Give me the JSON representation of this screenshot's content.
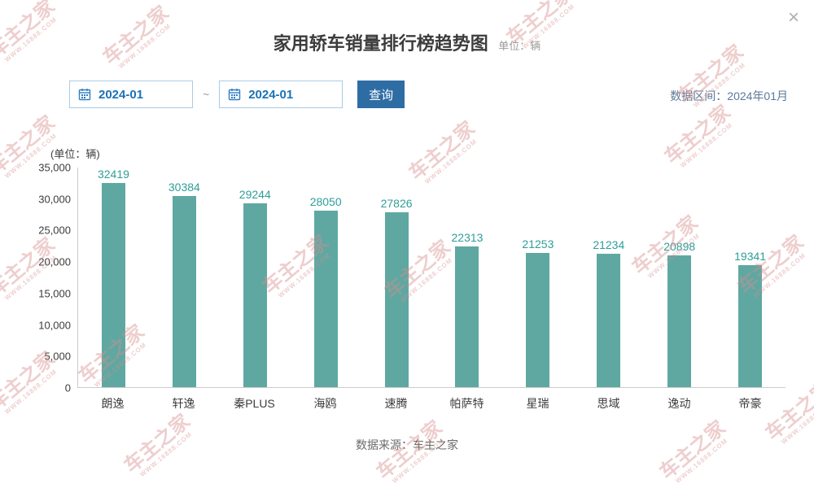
{
  "window": {
    "close_icon": "×"
  },
  "header": {
    "title": "家用轿车销量排行榜趋势图",
    "unit_note": "单位：辆"
  },
  "toolbar": {
    "date_start": "2024-01",
    "date_separator": "~",
    "date_end": "2024-01",
    "query_button": "查询",
    "data_range_label": "数据区间：2024年01月"
  },
  "chart_data": {
    "type": "bar",
    "title": "家用轿车销量排行榜趋势图",
    "unit_label": "(单位：辆)",
    "categories": [
      "朗逸",
      "轩逸",
      "秦PLUS",
      "海鸥",
      "速腾",
      "帕萨特",
      "星瑞",
      "思域",
      "逸动",
      "帝豪"
    ],
    "values": [
      32419,
      30384,
      29244,
      28050,
      27826,
      22313,
      21253,
      21234,
      20898,
      19341
    ],
    "ylim": [
      0,
      35000
    ],
    "ytick_interval": 5000,
    "yticks": [
      "35,000",
      "30,000",
      "25,000",
      "20,000",
      "15,000",
      "10,000",
      "5,000",
      "0"
    ],
    "bar_color": "#5fa8a2",
    "value_label_color": "#2e9e98",
    "grid": false,
    "legend": false
  },
  "footer": {
    "source": "数据来源：车主之家"
  },
  "watermark": {
    "line1": "车主之家",
    "line2": "WWW.16888.COM",
    "color": "#d98c8c"
  }
}
